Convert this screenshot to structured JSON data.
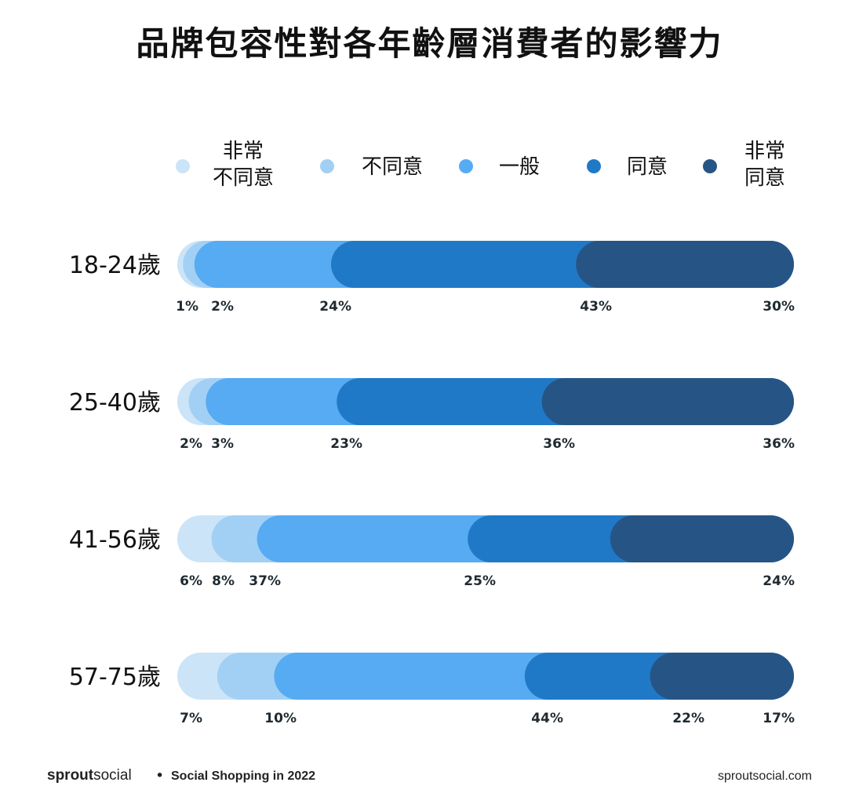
{
  "chart_data": {
    "type": "bar",
    "orientation": "horizontal-stacked-100",
    "title": "品牌包容性對各年齡層消費者的影響力",
    "categories": [
      "18-24歲",
      "25-40歲",
      "41-56歲",
      "57-75歲"
    ],
    "legend_position": "top",
    "series": [
      {
        "name": "非常不同意",
        "name_lines": [
          "非常",
          "不同意"
        ],
        "color": "#cce4f7",
        "values": [
          1,
          2,
          6,
          7
        ]
      },
      {
        "name": "不同意",
        "name_lines": [
          "不同意"
        ],
        "color": "#a2d0f5",
        "values": [
          2,
          3,
          8,
          10
        ]
      },
      {
        "name": "一般",
        "name_lines": [
          "一般"
        ],
        "color": "#56abf2",
        "values": [
          24,
          23,
          37,
          44
        ]
      },
      {
        "name": "同意",
        "name_lines": [
          "同意"
        ],
        "color": "#2079c7",
        "values": [
          43,
          36,
          25,
          22
        ]
      },
      {
        "name": "非常同意",
        "name_lines": [
          "非常",
          "同意"
        ],
        "color": "#265585",
        "values": [
          30,
          36,
          24,
          17
        ]
      }
    ],
    "value_suffix": "%"
  },
  "footer": {
    "brand_bold": "sprout",
    "brand_light": "social",
    "separator": "•",
    "report": "Social Shopping in 2022",
    "url": "sproutsocial.com"
  }
}
